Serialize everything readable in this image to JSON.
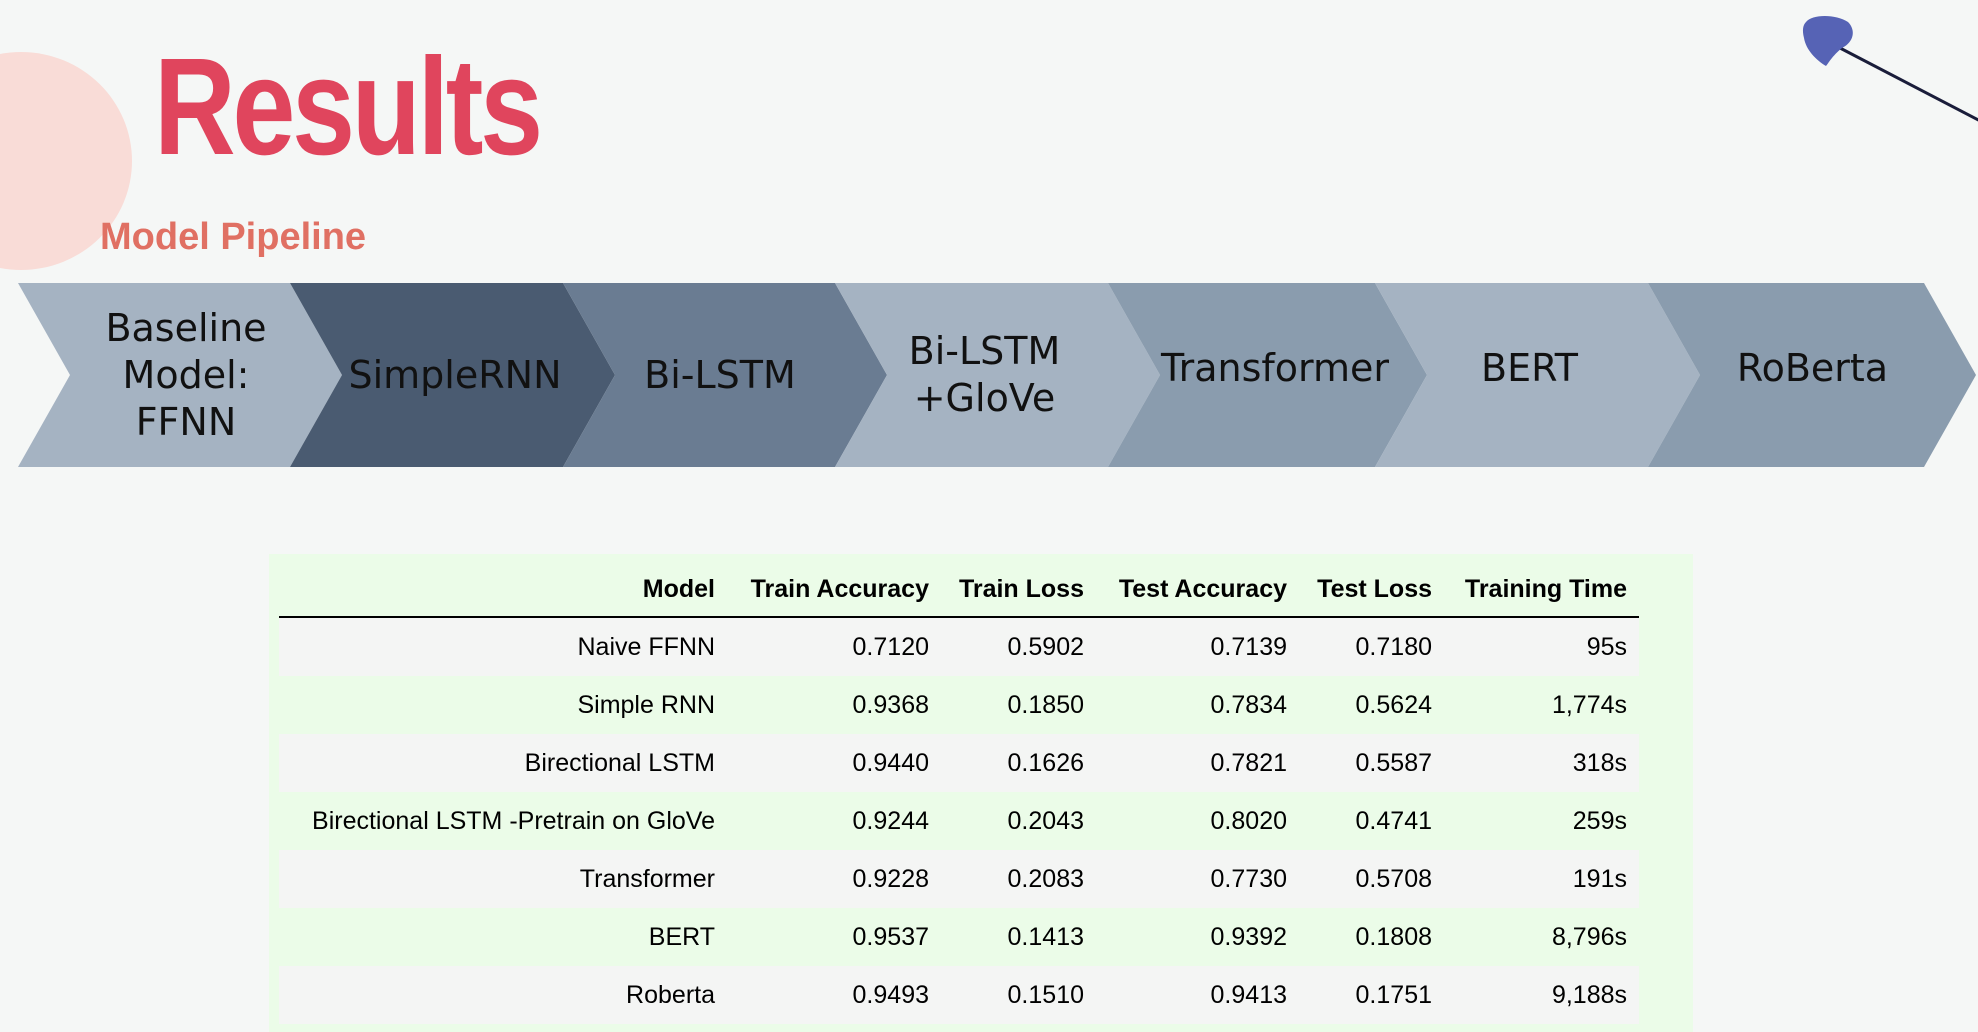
{
  "slide": {
    "title": "Results",
    "subtitle": "Model Pipeline"
  },
  "colors": {
    "title": "#e0455d",
    "subtitle": "#e07063",
    "blob": "#f9dcd7",
    "pin": "#5663b5",
    "panel": "#ebfce8"
  },
  "pipeline": {
    "steps": [
      {
        "label": "Baseline\nModel:\nFFNN",
        "color": "#a5b3c2"
      },
      {
        "label": "SimpleRNN",
        "color": "#4a5b71"
      },
      {
        "label": "Bi-LSTM",
        "color": "#6a7c92"
      },
      {
        "label": "Bi-LSTM\n+GloVe",
        "color": "#a5b3c2"
      },
      {
        "label": "Transformer",
        "color": "#8a9cae"
      },
      {
        "label": "BERT",
        "color": "#a5b3c2"
      },
      {
        "label": "RoBerta",
        "color": "#8a9cae"
      }
    ]
  },
  "table": {
    "headers": [
      "Model",
      "Train Accuracy",
      "Train Loss",
      "Test Accuracy",
      "Test Loss",
      "Training Time"
    ],
    "rows": [
      [
        "Naive FFNN",
        "0.7120",
        "0.5902",
        "0.7139",
        "0.7180",
        "95s"
      ],
      [
        "Simple RNN",
        "0.9368",
        "0.1850",
        "0.7834",
        "0.5624",
        "1,774s"
      ],
      [
        "Birectional LSTM",
        "0.9440",
        "0.1626",
        "0.7821",
        "0.5587",
        "318s"
      ],
      [
        "Birectional LSTM -Pretrain on GloVe",
        "0.9244",
        "0.2043",
        "0.8020",
        "0.4741",
        "259s"
      ],
      [
        "Transformer",
        "0.9228",
        "0.2083",
        "0.7730",
        "0.5708",
        "191s"
      ],
      [
        "BERT",
        "0.9537",
        "0.1413",
        "0.9392",
        "0.1808",
        "8,796s"
      ],
      [
        "Roberta",
        "0.9493",
        "0.1510",
        "0.9413",
        "0.1751",
        "9,188s"
      ]
    ]
  }
}
